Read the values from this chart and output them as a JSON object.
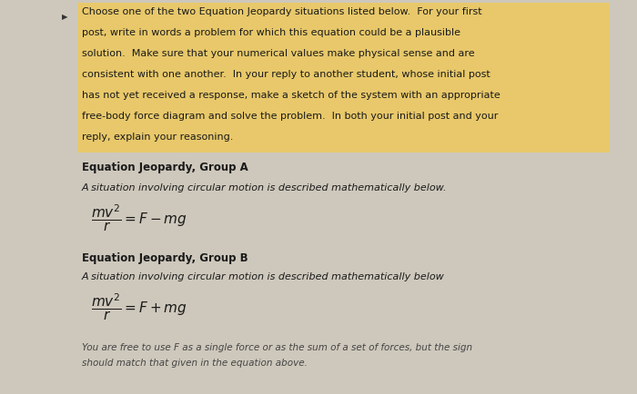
{
  "bg_color": "#cec8bc",
  "highlight_color": "#e8c86a",
  "text_color": "#1a1a1a",
  "figsize": [
    7.0,
    4.34
  ],
  "dpi": 100,
  "intro_lines": [
    "Choose one of the two Equation Jeopardy situations listed below.  For your first",
    "post, write in words a problem for which this equation could be a plausible",
    "solution.  Make sure that your numerical values make physical sense and are",
    "consistent with one another.  In your reply to another student, whose initial post",
    "has not yet received a response, make a sketch of the system with an appropriate",
    "free-body force diagram and solve the problem.  In both your initial post and your",
    "reply, explain your reasoning."
  ],
  "section_a_header": "Equation Jeopardy, Group A",
  "section_a_desc": "A situation involving circular motion is described mathematically below.",
  "eq_a": "$\\dfrac{mv^2}{r} = F - mg$",
  "section_b_header": "Equation Jeopardy, Group B",
  "section_b_desc": "A situation involving circular motion is described mathematically below",
  "eq_b": "$\\dfrac{mv^2}{r} = F + mg$",
  "footer_lines": [
    "You are free to use F as a single force or as the sum of a set of forces, but the sign",
    "should match that given in the equation above."
  ]
}
